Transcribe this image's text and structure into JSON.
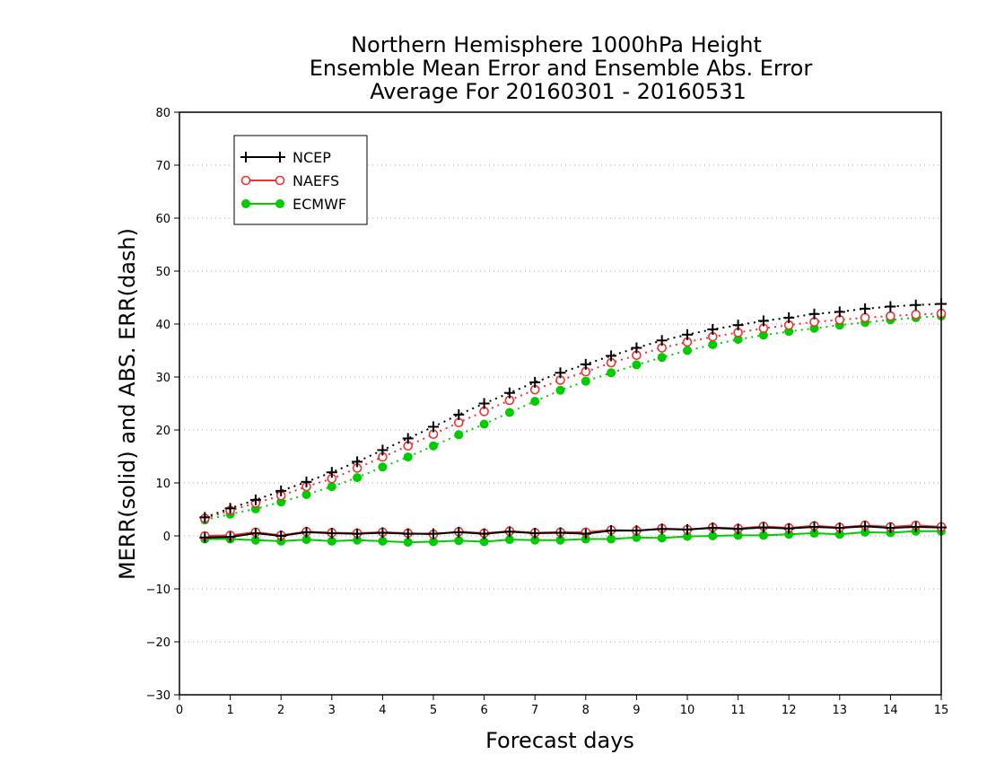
{
  "chart_data": {
    "type": "line",
    "title_lines": [
      "Northern Hemisphere 1000hPa Height",
      "Ensemble Mean Error and Ensemble Abs. Error",
      "Average For 20160301 - 20160531"
    ],
    "xlabel": "Forecast days",
    "ylabel": "MERR(solid) and ABS. ERR(dash)",
    "xlim": [
      0,
      15
    ],
    "ylim": [
      -30,
      80
    ],
    "x_ticks": [
      0,
      1,
      2,
      3,
      4,
      5,
      6,
      7,
      8,
      9,
      10,
      11,
      12,
      13,
      14,
      15
    ],
    "y_ticks": [
      -30,
      -20,
      -10,
      0,
      10,
      20,
      30,
      40,
      50,
      60,
      70,
      80
    ],
    "grid": "horizontal-dotted",
    "legend_position": "top-left",
    "x": [
      0.5,
      1,
      1.5,
      2,
      2.5,
      3,
      3.5,
      4,
      4.5,
      5,
      5.5,
      6,
      6.5,
      7,
      7.5,
      8,
      8.5,
      9,
      9.5,
      10,
      10.5,
      11,
      11.5,
      12,
      12.5,
      13,
      13.5,
      14,
      14.5,
      15
    ],
    "series": [
      {
        "name": "NCEP",
        "color": "#000000",
        "marker": "plus",
        "abs_err": [
          3.5,
          5.2,
          6.8,
          8.5,
          10.2,
          12.0,
          14.0,
          16.2,
          18.4,
          20.6,
          22.9,
          25.0,
          27.0,
          29.0,
          30.8,
          32.4,
          34.0,
          35.5,
          36.9,
          38.0,
          39.0,
          39.8,
          40.6,
          41.2,
          41.9,
          42.3,
          42.9,
          43.3,
          43.6,
          43.8
        ],
        "mean_err": [
          -0.3,
          -0.2,
          0.5,
          0.0,
          0.7,
          0.5,
          0.4,
          0.6,
          0.4,
          0.4,
          0.7,
          0.4,
          0.8,
          0.5,
          0.6,
          0.4,
          1.0,
          1.0,
          1.3,
          1.2,
          1.5,
          1.3,
          1.6,
          1.4,
          1.7,
          1.5,
          1.8,
          1.5,
          1.7,
          1.6
        ]
      },
      {
        "name": "NAEFS",
        "color": "#ee3333",
        "marker": "open-circle",
        "abs_err": [
          3.3,
          4.8,
          6.2,
          7.6,
          9.3,
          10.8,
          12.8,
          14.9,
          17.0,
          19.2,
          21.4,
          23.5,
          25.6,
          27.6,
          29.4,
          31.0,
          32.7,
          34.1,
          35.5,
          36.6,
          37.6,
          38.4,
          39.2,
          39.8,
          40.4,
          40.8,
          41.2,
          41.5,
          41.8,
          42.0
        ],
        "mean_err": [
          0.0,
          0.1,
          0.7,
          0.1,
          0.8,
          0.6,
          0.5,
          0.7,
          0.5,
          0.3,
          0.8,
          0.5,
          0.9,
          0.6,
          0.7,
          0.7,
          1.1,
          1.0,
          1.4,
          1.2,
          1.6,
          1.4,
          1.8,
          1.5,
          1.9,
          1.6,
          2.0,
          1.7,
          2.0,
          1.7
        ]
      },
      {
        "name": "ECMWF",
        "color": "#00cc00",
        "marker": "filled-circle",
        "abs_err": [
          3.0,
          4.1,
          5.1,
          6.4,
          7.8,
          9.3,
          11.0,
          13.0,
          14.9,
          17.0,
          19.1,
          21.1,
          23.3,
          25.4,
          27.5,
          29.2,
          30.8,
          32.3,
          33.7,
          35.0,
          36.1,
          37.1,
          37.9,
          38.6,
          39.2,
          39.8,
          40.3,
          40.8,
          41.2,
          41.5
        ],
        "mean_err": [
          -0.6,
          -0.6,
          -0.8,
          -1.0,
          -0.7,
          -1.0,
          -0.8,
          -1.0,
          -1.2,
          -1.1,
          -0.9,
          -1.1,
          -0.7,
          -0.8,
          -0.8,
          -0.6,
          -0.6,
          -0.3,
          -0.4,
          -0.1,
          0.0,
          0.1,
          0.1,
          0.3,
          0.5,
          0.3,
          0.7,
          0.6,
          0.9,
          0.9
        ]
      }
    ]
  }
}
